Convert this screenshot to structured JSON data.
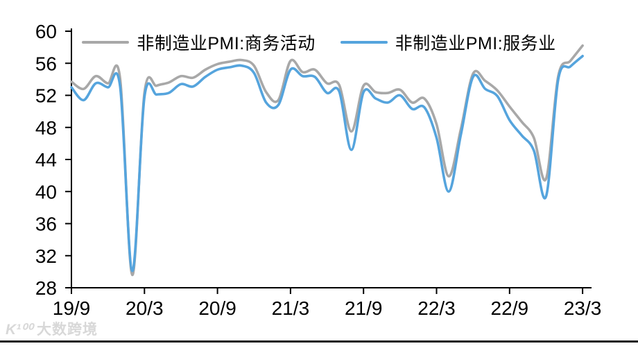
{
  "chart_data": {
    "type": "line",
    "title": "",
    "grid": false,
    "legend_position": "top",
    "x_axis": {
      "frequency": "monthly",
      "start": "2019/9",
      "end": "2023/3",
      "tick_labels": [
        "19/9",
        "20/3",
        "20/9",
        "21/3",
        "21/9",
        "22/3",
        "22/9",
        "23/3"
      ],
      "tick_month_indices": [
        0,
        6,
        12,
        18,
        24,
        30,
        36,
        42
      ]
    },
    "y_axis": {
      "min": 28,
      "max": 60,
      "tick_step": 4,
      "ticks": [
        60,
        56,
        52,
        48,
        44,
        40,
        36,
        32,
        28
      ]
    },
    "series": [
      {
        "name": "非制造业PMI:商务活动",
        "color": "#a8a8a8",
        "values": [
          53.7,
          52.8,
          54.4,
          53.5,
          54.1,
          29.6,
          52.3,
          53.2,
          53.6,
          54.4,
          54.2,
          55.2,
          55.9,
          56.2,
          56.4,
          55.7,
          52.4,
          51.4,
          56.3,
          54.9,
          55.2,
          53.5,
          53.3,
          47.5,
          53.2,
          52.4,
          52.3,
          52.7,
          51.1,
          51.6,
          48.4,
          41.9,
          47.8,
          54.7,
          53.8,
          52.6,
          50.6,
          48.7,
          46.7,
          41.6,
          54.4,
          56.3,
          58.2
        ]
      },
      {
        "name": "非制造业PMI:服务业",
        "color": "#55a4dd",
        "values": [
          53.0,
          51.4,
          53.5,
          53.0,
          53.1,
          30.1,
          51.8,
          52.1,
          52.3,
          53.4,
          53.1,
          54.3,
          55.2,
          55.5,
          55.7,
          54.8,
          51.1,
          50.8,
          55.2,
          54.4,
          54.3,
          52.3,
          52.5,
          45.2,
          52.4,
          51.6,
          51.1,
          52.0,
          50.3,
          50.5,
          46.7,
          40.0,
          47.1,
          54.3,
          52.8,
          51.9,
          48.9,
          47.0,
          45.1,
          39.4,
          54.0,
          55.6,
          56.9
        ]
      }
    ],
    "axis_color": "#000000"
  },
  "watermark": {
    "logo": "K¹⁰⁰",
    "text": "大数跨境"
  }
}
